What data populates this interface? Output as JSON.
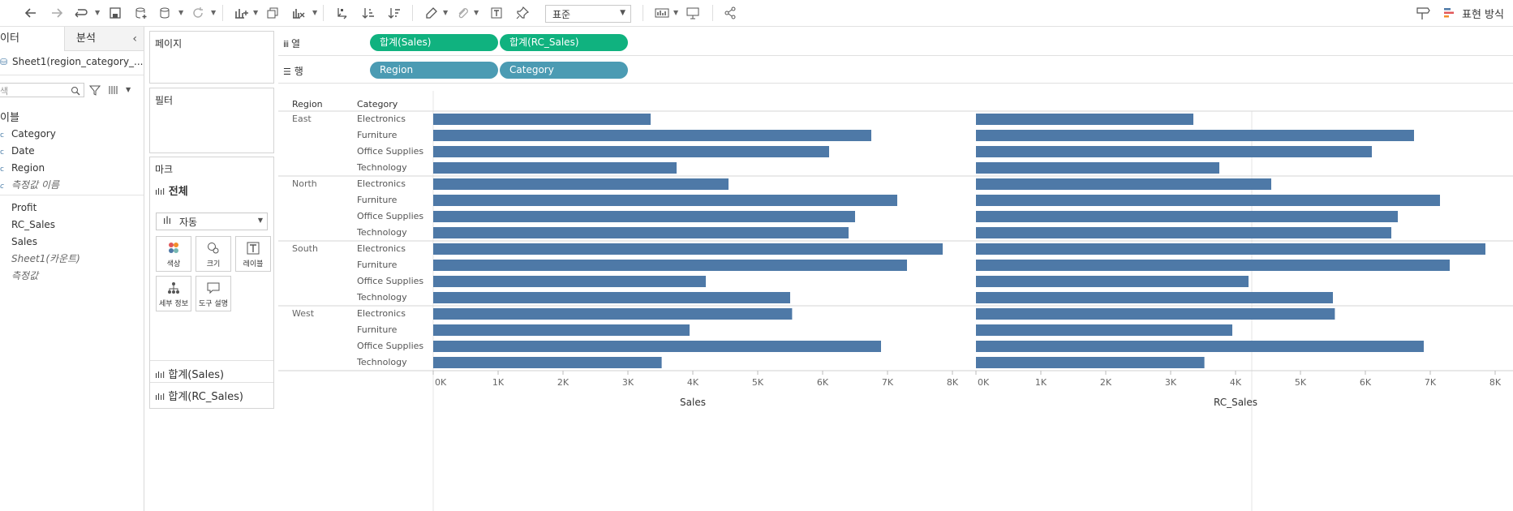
{
  "toolbar": {
    "fit_value": "표준",
    "show_me_label": "표현 방식"
  },
  "data_pane": {
    "tab_data": "이터",
    "tab_analysis": "분석",
    "datasource": "Sheet1(region_category_...",
    "search_placeholder": "색",
    "tables_header": "이블",
    "dimensions": [
      "Category",
      "Date",
      "Region",
      "측정값 이름"
    ],
    "measures": [
      "Profit",
      "RC_Sales",
      "Sales",
      "Sheet1(카운트)",
      "측정값"
    ]
  },
  "cards": {
    "pages_title": "페이지",
    "filters_title": "필터",
    "marks_title": "마크",
    "marks_all": "전체",
    "mark_type": "자동",
    "mark_buttons": [
      "색상",
      "크기",
      "레이블",
      "세부 정보",
      "도구 설명"
    ],
    "measure_sections": [
      "합계(Sales)",
      "합계(RC_Sales)"
    ]
  },
  "shelves": {
    "columns_label": "열",
    "rows_label": "행",
    "columns_pills": [
      "합계(Sales)",
      "합계(RC_Sales)"
    ],
    "rows_pills": [
      "Region",
      "Category"
    ]
  },
  "chart_data": {
    "type": "bar",
    "orientation": "horizontal",
    "row_headers": [
      "Region",
      "Category"
    ],
    "regions": [
      "East",
      "North",
      "South",
      "West"
    ],
    "categories": [
      "Electronics",
      "Furniture",
      "Office Supplies",
      "Technology"
    ],
    "panes": [
      {
        "xlabel": "Sales",
        "xlim": [
          0,
          8000
        ],
        "ticks": [
          "0K",
          "1K",
          "2K",
          "3K",
          "4K",
          "5K",
          "6K",
          "7K",
          "8K"
        ],
        "values": [
          [
            3350,
            6750,
            6100,
            3750
          ],
          [
            4550,
            7150,
            6500,
            6400
          ],
          [
            7850,
            7300,
            4200,
            5500
          ],
          [
            5530,
            3950,
            6900,
            3520
          ]
        ]
      },
      {
        "xlabel": "RC_Sales",
        "xlim": [
          0,
          8000
        ],
        "ticks": [
          "0K",
          "1K",
          "2K",
          "3K",
          "4K",
          "5K",
          "6K",
          "7K",
          "8K"
        ],
        "values": [
          [
            3350,
            6750,
            6100,
            3750
          ],
          [
            4550,
            7150,
            6500,
            6400
          ],
          [
            7850,
            7300,
            4200,
            5500
          ],
          [
            5530,
            3950,
            6900,
            3520
          ]
        ]
      }
    ],
    "bar_color": "#4e79a7",
    "grid": false
  }
}
